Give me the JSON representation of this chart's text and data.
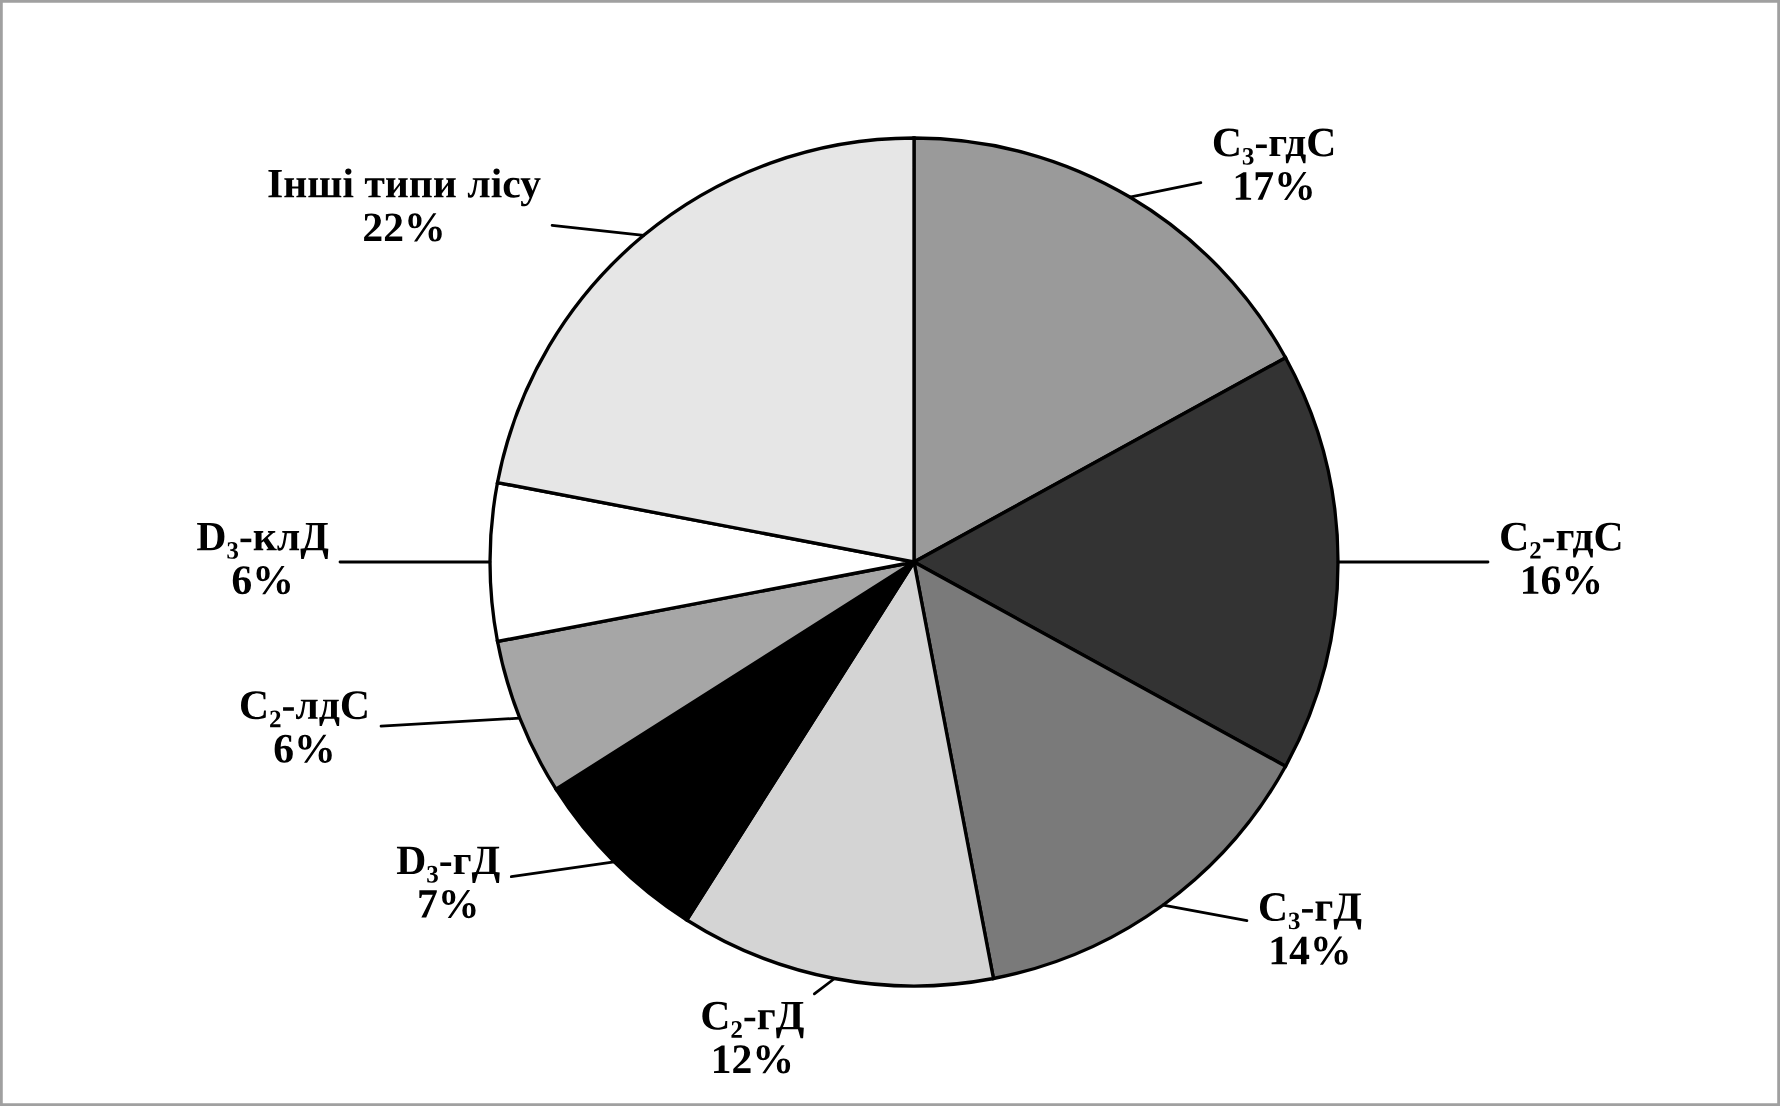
{
  "chart_data": {
    "type": "pie",
    "categories": [
      "C₃-гдС",
      "C₂-гдС",
      "C₃-гД",
      "C₂-гД",
      "D₃-гД",
      "C₂-лдС",
      "D₃-клД",
      "Інші типи лісу"
    ],
    "values": [
      17,
      16,
      14,
      12,
      7,
      6,
      6,
      22
    ],
    "value_labels": [
      "17%",
      "16%",
      "14%",
      "12%",
      "7%",
      "6%",
      "6%",
      "22%"
    ],
    "colors": [
      "#9a9a9a",
      "#333333",
      "#7a7a7a",
      "#d4d4d4",
      "#000000",
      "#a6a6a6",
      "#ffffff",
      "#e6e6e6"
    ],
    "legend": false
  }
}
